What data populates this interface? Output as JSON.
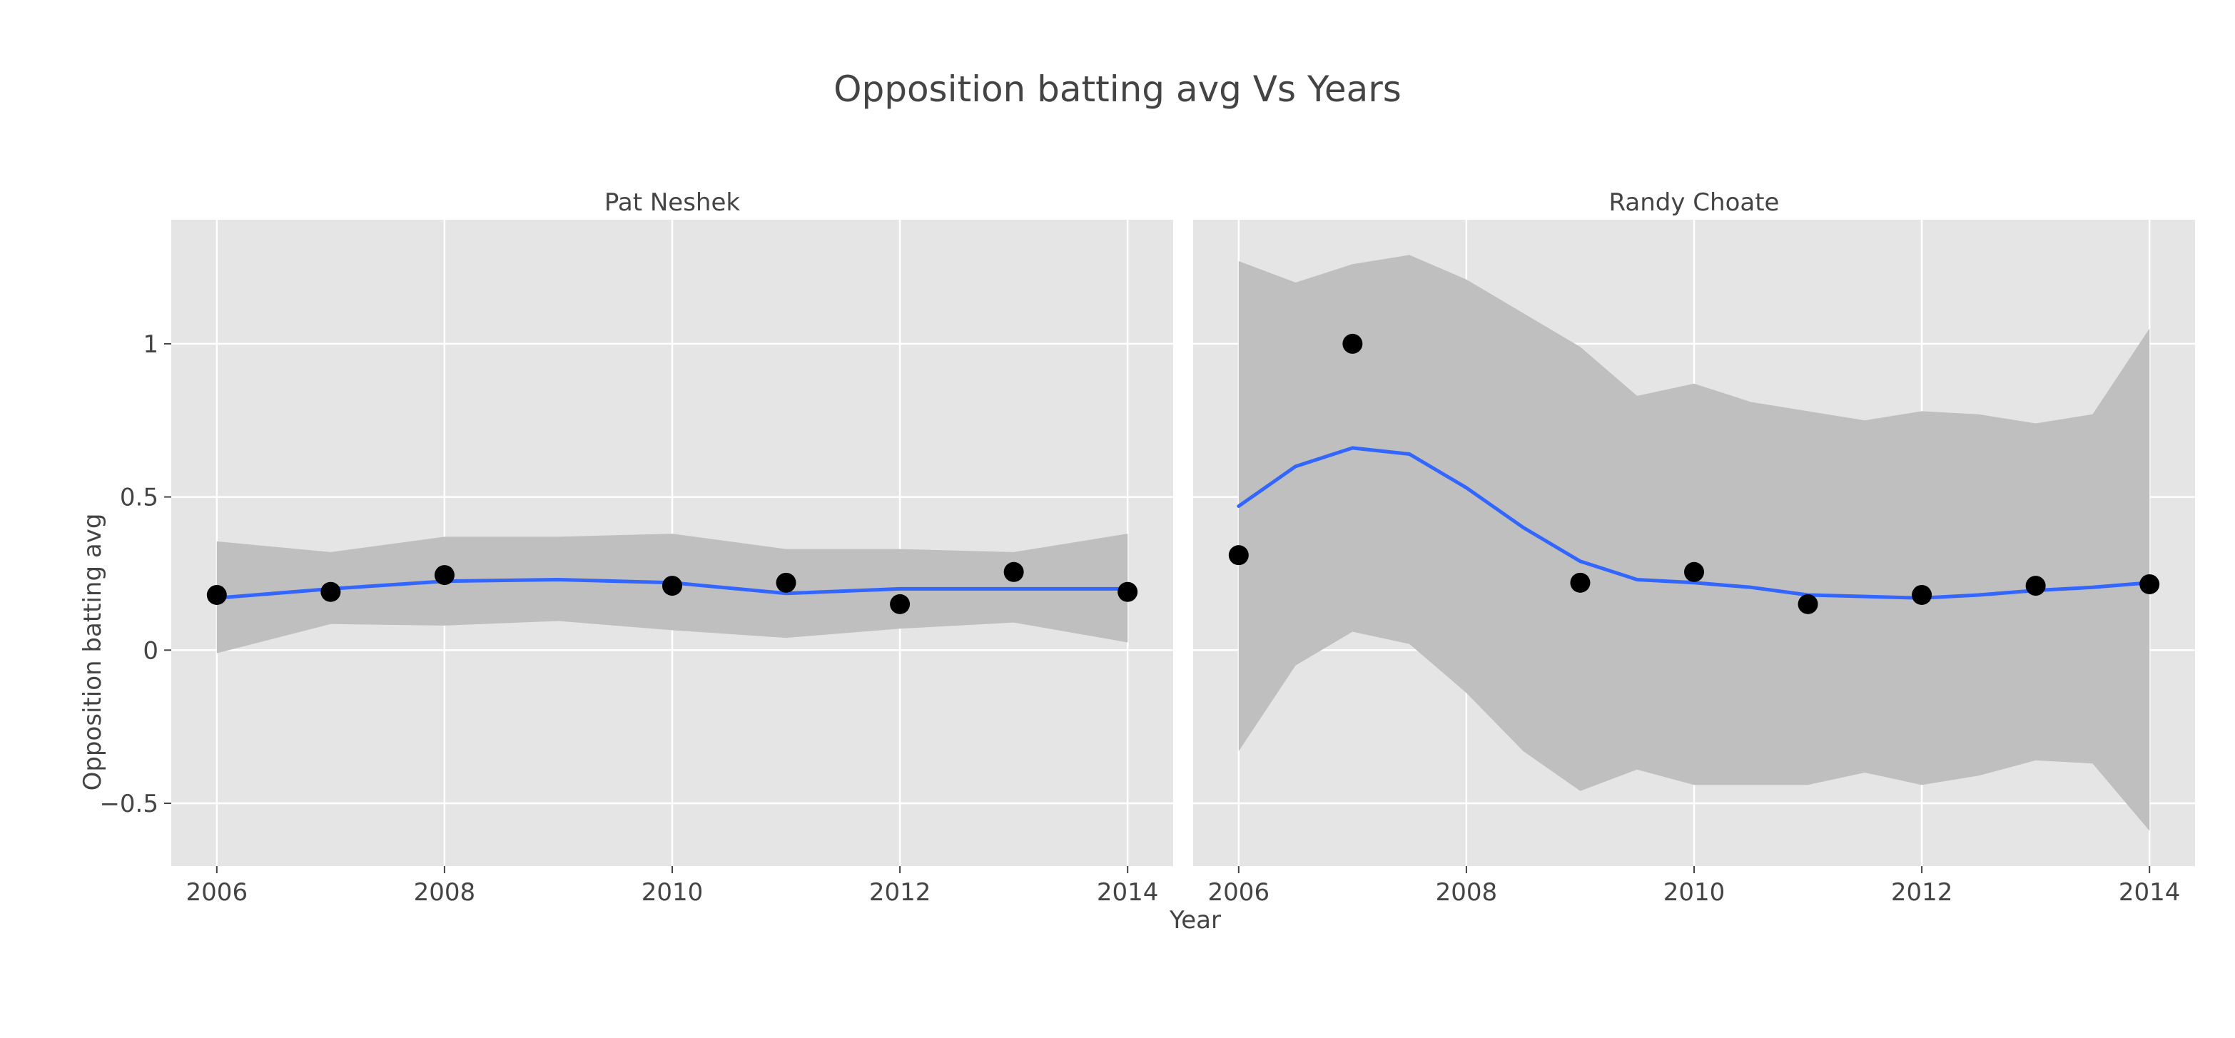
{
  "chart_data": {
    "type": "scatter",
    "title": "Opposition batting avg Vs Years",
    "xlabel": "Year",
    "ylabel": "Opposition batting avg",
    "xlim": [
      2005.6,
      2014.4
    ],
    "ylim": [
      -0.705,
      1.405
    ],
    "x_ticks": [
      2006,
      2008,
      2010,
      2012,
      2014
    ],
    "y_ticks": [
      -0.5,
      0,
      0.5,
      1
    ],
    "y_tick_labels": [
      "−0.5",
      "0",
      "0.5",
      "1"
    ],
    "grid": true,
    "colors": {
      "panel_bg": "#e5e5e5",
      "grid": "#ffffff",
      "ribbon": "#bfbfbf",
      "smooth_line": "#3366ff",
      "point": "#000000",
      "text": "#444444"
    },
    "panels": [
      {
        "facet": "Pat Neshek",
        "points": {
          "x": [
            2006,
            2007,
            2008,
            2010,
            2011,
            2012,
            2013,
            2014
          ],
          "y": [
            0.18,
            0.19,
            0.245,
            0.21,
            0.22,
            0.15,
            0.255,
            0.19
          ]
        },
        "smooth": {
          "x": [
            2006,
            2007,
            2008,
            2009,
            2010,
            2011,
            2012,
            2013,
            2014
          ],
          "y": [
            0.17,
            0.2,
            0.225,
            0.23,
            0.22,
            0.185,
            0.2,
            0.2,
            0.2
          ],
          "lower": [
            -0.01,
            0.085,
            0.08,
            0.095,
            0.065,
            0.04,
            0.07,
            0.09,
            0.025
          ],
          "upper": [
            0.355,
            0.32,
            0.37,
            0.37,
            0.38,
            0.33,
            0.33,
            0.32,
            0.38
          ]
        }
      },
      {
        "facet": "Randy Choate",
        "points": {
          "x": [
            2006,
            2007,
            2009,
            2010,
            2011,
            2012,
            2013,
            2014
          ],
          "y": [
            0.31,
            1.0,
            0.22,
            0.255,
            0.15,
            0.18,
            0.21,
            0.215
          ]
        },
        "smooth": {
          "x": [
            2006,
            2006.5,
            2007,
            2007.5,
            2008,
            2008.5,
            2009,
            2009.5,
            2010,
            2010.5,
            2011,
            2011.5,
            2012,
            2012.5,
            2013,
            2013.5,
            2014
          ],
          "y": [
            0.47,
            0.6,
            0.66,
            0.64,
            0.53,
            0.4,
            0.29,
            0.23,
            0.22,
            0.205,
            0.18,
            0.175,
            0.17,
            0.18,
            0.195,
            0.205,
            0.22
          ],
          "lower": [
            -0.33,
            -0.05,
            0.06,
            0.02,
            -0.14,
            -0.33,
            -0.46,
            -0.39,
            -0.44,
            -0.44,
            -0.44,
            -0.4,
            -0.44,
            -0.41,
            -0.36,
            -0.37,
            -0.59
          ],
          "upper": [
            1.27,
            1.2,
            1.26,
            1.29,
            1.21,
            1.1,
            0.99,
            0.83,
            0.87,
            0.81,
            0.78,
            0.75,
            0.78,
            0.77,
            0.74,
            0.77,
            1.05
          ]
        }
      }
    ]
  }
}
